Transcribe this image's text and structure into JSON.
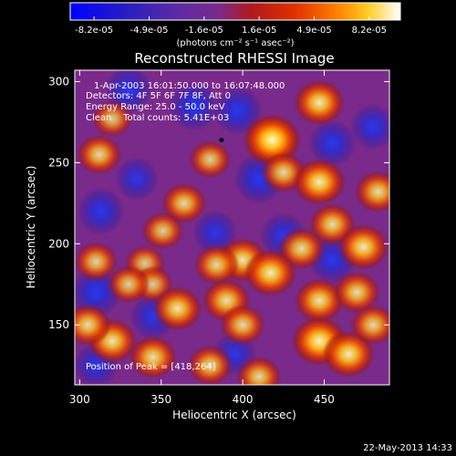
{
  "chart_data": {
    "type": "heatmap",
    "title": "Reconstructed RHESSI Image",
    "xlabel": "Heliocentric X (arcsec)",
    "ylabel": "Heliocentric Y (arcsec)",
    "xlim": [
      297,
      490
    ],
    "ylim": [
      113,
      307
    ],
    "x_ticks": [
      300,
      350,
      400,
      450
    ],
    "y_ticks": [
      150,
      200,
      250,
      300
    ],
    "colorbar": {
      "range": [
        -8.2e-05,
        8.2e-05
      ],
      "tick_labels": [
        "-8.2e-05",
        "-4.9e-05",
        "-1.6e-05",
        "1.6e-05",
        "4.9e-05",
        "8.2e-05"
      ],
      "unit_label": "(photons cm⁻² s⁻¹ asec⁻²)",
      "colormap": "blue-purple-red-orange-yellow-white"
    },
    "annotations": [
      "1-Apr-2003 16:01:50.000 to 16:07:48.000",
      "Detectors: 4F 5F 6F 7F 8F, Att 0",
      "Energy Range: 25.0 - 50.0 keV",
      "Clean    Total counts: 5.41E+03"
    ],
    "peak_label": "Position of Peak = [418,264]",
    "peak_position": [
      418,
      264
    ],
    "marker_position": [
      387,
      264
    ],
    "bright_spots": [
      {
        "x": 418,
        "y": 264,
        "level": 1.0
      },
      {
        "x": 447,
        "y": 287,
        "level": 0.75
      },
      {
        "x": 425,
        "y": 244,
        "level": 0.55
      },
      {
        "x": 447,
        "y": 238,
        "level": 0.8
      },
      {
        "x": 483,
        "y": 232,
        "level": 0.6
      },
      {
        "x": 455,
        "y": 212,
        "level": 0.6
      },
      {
        "x": 474,
        "y": 198,
        "level": 0.75
      },
      {
        "x": 436,
        "y": 197,
        "level": 0.6
      },
      {
        "x": 380,
        "y": 252,
        "level": 0.45
      },
      {
        "x": 400,
        "y": 190,
        "level": 0.7
      },
      {
        "x": 417,
        "y": 182,
        "level": 0.8
      },
      {
        "x": 364,
        "y": 225,
        "level": 0.55
      },
      {
        "x": 384,
        "y": 187,
        "level": 0.55
      },
      {
        "x": 351,
        "y": 208,
        "level": 0.45
      },
      {
        "x": 312,
        "y": 255,
        "level": 0.55
      },
      {
        "x": 320,
        "y": 277,
        "level": 0.4
      },
      {
        "x": 340,
        "y": 188,
        "level": 0.4
      },
      {
        "x": 310,
        "y": 189,
        "level": 0.5
      },
      {
        "x": 345,
        "y": 175,
        "level": 0.4
      },
      {
        "x": 360,
        "y": 160,
        "level": 0.7
      },
      {
        "x": 390,
        "y": 165,
        "level": 0.65
      },
      {
        "x": 400,
        "y": 150,
        "level": 0.55
      },
      {
        "x": 447,
        "y": 165,
        "level": 0.7
      },
      {
        "x": 470,
        "y": 170,
        "level": 0.6
      },
      {
        "x": 320,
        "y": 140,
        "level": 0.7
      },
      {
        "x": 305,
        "y": 150,
        "level": 0.6
      },
      {
        "x": 345,
        "y": 130,
        "level": 0.65
      },
      {
        "x": 380,
        "y": 125,
        "level": 0.55
      },
      {
        "x": 410,
        "y": 118,
        "level": 0.55
      },
      {
        "x": 447,
        "y": 140,
        "level": 0.9
      },
      {
        "x": 465,
        "y": 132,
        "level": 0.8
      },
      {
        "x": 480,
        "y": 150,
        "level": 0.55
      },
      {
        "x": 330,
        "y": 175,
        "level": 0.45
      }
    ],
    "dark_spots": [
      {
        "x": 370,
        "y": 285,
        "level": 0.7
      },
      {
        "x": 330,
        "y": 295,
        "level": 0.6
      },
      {
        "x": 397,
        "y": 282,
        "level": 0.65
      },
      {
        "x": 455,
        "y": 262,
        "level": 0.6
      },
      {
        "x": 480,
        "y": 272,
        "level": 0.55
      },
      {
        "x": 410,
        "y": 240,
        "level": 0.7
      },
      {
        "x": 335,
        "y": 240,
        "level": 0.45
      },
      {
        "x": 313,
        "y": 220,
        "level": 0.6
      },
      {
        "x": 310,
        "y": 170,
        "level": 0.7
      },
      {
        "x": 345,
        "y": 155,
        "level": 0.55
      },
      {
        "x": 425,
        "y": 205,
        "level": 0.55
      },
      {
        "x": 383,
        "y": 207,
        "level": 0.5
      },
      {
        "x": 455,
        "y": 190,
        "level": 0.6
      },
      {
        "x": 310,
        "y": 125,
        "level": 0.5
      },
      {
        "x": 395,
        "y": 132,
        "level": 0.45
      }
    ]
  },
  "footer_timestamp": "22-May-2013 14:33"
}
